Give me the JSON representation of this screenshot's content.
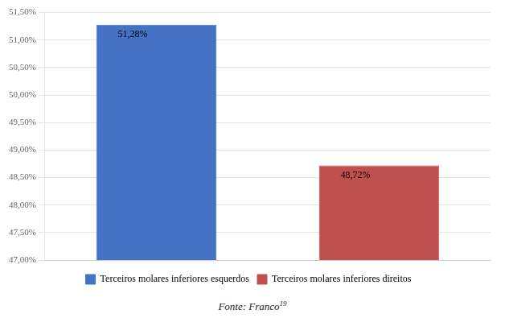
{
  "chart_data": {
    "type": "bar",
    "categories": [
      "Terceiros molares inferiores esquerdos",
      "Terceiros molares inferiores direitos"
    ],
    "values": [
      51.28,
      48.72
    ],
    "colors": [
      "#4472C4",
      "#C0504D"
    ],
    "data_labels": true,
    "value_labels": [
      "51,28%",
      "48,72%"
    ],
    "ylim": [
      47.0,
      51.5
    ],
    "yticks": [
      {
        "value": 47.0,
        "label": "47,00%"
      },
      {
        "value": 47.5,
        "label": "47,50%"
      },
      {
        "value": 48.0,
        "label": "48,00%"
      },
      {
        "value": 48.5,
        "label": "48,50%"
      },
      {
        "value": 49.0,
        "label": "49,00%"
      },
      {
        "value": 49.5,
        "label": "49,50%"
      },
      {
        "value": 50.0,
        "label": "50,00%"
      },
      {
        "value": 50.5,
        "label": "50,50%"
      },
      {
        "value": 51.0,
        "label": "51,00%"
      },
      {
        "value": 51.5,
        "label": "51,50%"
      }
    ],
    "tick_labels": "y",
    "grid": true,
    "legend": "bottom",
    "annotations": [
      "Fonte: Franco",
      "19"
    ]
  }
}
